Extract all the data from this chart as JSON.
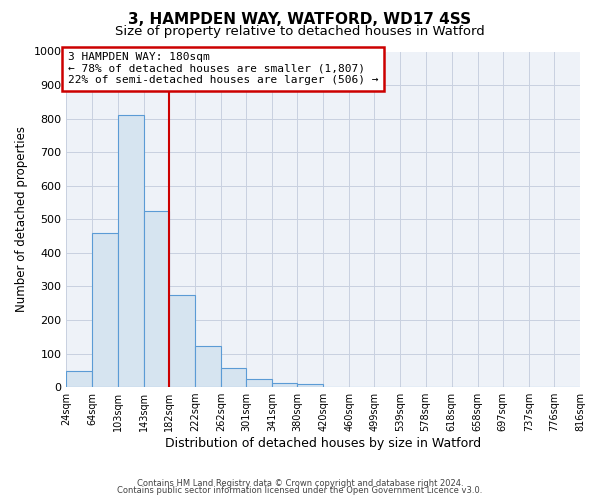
{
  "title": "3, HAMPDEN WAY, WATFORD, WD17 4SS",
  "subtitle": "Size of property relative to detached houses in Watford",
  "xlabel": "Distribution of detached houses by size in Watford",
  "ylabel": "Number of detached properties",
  "bar_values": [
    47,
    460,
    810,
    525,
    275,
    122,
    57,
    23,
    13,
    8,
    0,
    0,
    0,
    0,
    0,
    0,
    0,
    0,
    0,
    0
  ],
  "bin_edges": [
    24,
    64,
    103,
    143,
    182,
    222,
    262,
    301,
    341,
    380,
    420,
    460,
    499,
    539,
    578,
    618,
    658,
    697,
    737,
    776,
    816
  ],
  "tick_labels": [
    "24sqm",
    "64sqm",
    "103sqm",
    "143sqm",
    "182sqm",
    "222sqm",
    "262sqm",
    "301sqm",
    "341sqm",
    "380sqm",
    "420sqm",
    "460sqm",
    "499sqm",
    "539sqm",
    "578sqm",
    "618sqm",
    "658sqm",
    "697sqm",
    "737sqm",
    "776sqm",
    "816sqm"
  ],
  "bar_color": "#d6e4f0",
  "bar_edge_color": "#5b9bd5",
  "vline_x": 182,
  "vline_color": "#cc0000",
  "annotation_line1": "3 HAMPDEN WAY: 180sqm",
  "annotation_line2": "← 78% of detached houses are smaller (1,807)",
  "annotation_line3": "22% of semi-detached houses are larger (506) →",
  "annotation_box_edge_color": "#cc0000",
  "ylim": [
    0,
    1000
  ],
  "yticks": [
    0,
    100,
    200,
    300,
    400,
    500,
    600,
    700,
    800,
    900,
    1000
  ],
  "footer_line1": "Contains HM Land Registry data © Crown copyright and database right 2024.",
  "footer_line2": "Contains public sector information licensed under the Open Government Licence v3.0.",
  "background_color": "#ffffff",
  "plot_bg_color": "#eef2f8",
  "grid_color": "#c8d0e0",
  "title_fontsize": 11,
  "subtitle_fontsize": 9.5
}
